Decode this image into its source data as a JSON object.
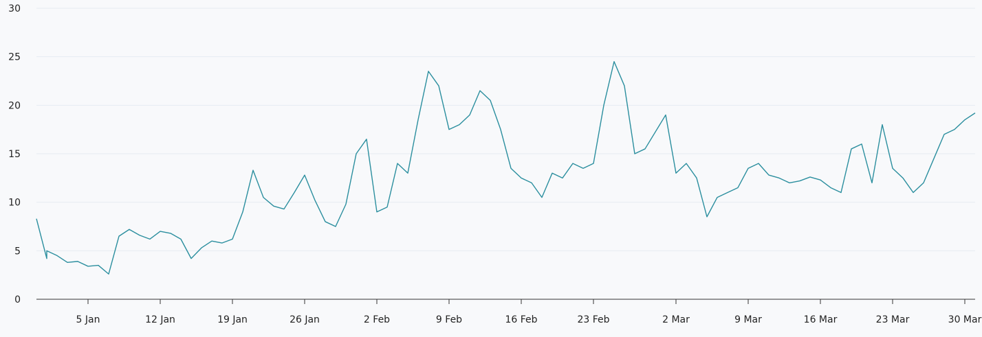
{
  "chart_data": {
    "type": "line",
    "title": "",
    "xlabel": "",
    "ylabel": "",
    "ylim": [
      0,
      30
    ],
    "y_ticks": [
      0,
      5,
      10,
      15,
      20,
      25,
      30
    ],
    "x_ticks": [
      "5 Jan",
      "12 Jan",
      "19 Jan",
      "26 Jan",
      "2 Feb",
      "9 Feb",
      "16 Feb",
      "23 Feb",
      "2 Mar",
      "9 Mar",
      "16 Mar",
      "23 Mar",
      "30 Mar"
    ],
    "x_range": [
      "Dec 30",
      "Mar 31"
    ],
    "grid": "horizontal",
    "line_color": "#2a8e9e",
    "series": [
      {
        "x": [
          "Dec 30",
          "Dec 31",
          "Jan 1",
          "Jan 2",
          "Jan 3",
          "Jan 4",
          "Jan 5",
          "Jan 6",
          "Jan 7",
          "Jan 8",
          "Jan 9",
          "Jan 10",
          "Jan 11",
          "Jan 12",
          "Jan 13",
          "Jan 14",
          "Jan 15",
          "Jan 16",
          "Jan 17",
          "Jan 18",
          "Jan 19",
          "Jan 20",
          "Jan 21",
          "Jan 22",
          "Jan 23",
          "Jan 24",
          "Jan 25",
          "Jan 26",
          "Jan 27",
          "Jan 28",
          "Jan 29",
          "Jan 30",
          "Jan 31",
          "Feb 1",
          "Feb 2",
          "Feb 3",
          "Feb 4",
          "Feb 5",
          "Feb 6",
          "Feb 7",
          "Feb 8",
          "Feb 9",
          "Feb 10",
          "Feb 11",
          "Feb 12",
          "Feb 13",
          "Feb 14",
          "Feb 15",
          "Feb 16",
          "Feb 17",
          "Feb 18",
          "Feb 19",
          "Feb 20",
          "Feb 21",
          "Feb 22",
          "Feb 23",
          "Feb 24",
          "Feb 25",
          "Feb 26",
          "Feb 27",
          "Feb 28",
          "Mar 1",
          "Mar 2",
          "Mar 3",
          "Mar 4",
          "Mar 5",
          "Mar 6",
          "Mar 7",
          "Mar 8",
          "Mar 9",
          "Mar 10",
          "Mar 11",
          "Mar 12",
          "Mar 13",
          "Mar 14",
          "Mar 15",
          "Mar 16",
          "Mar 17",
          "Mar 18",
          "Mar 19",
          "Mar 20",
          "Mar 21",
          "Mar 22",
          "Mar 23",
          "Mar 24",
          "Mar 25",
          "Mar 26",
          "Mar 27",
          "Mar 28",
          "Mar 29",
          "Mar 30",
          "Mar 31"
        ],
        "values": [
          8.3,
          4.2,
          5.0,
          4.5,
          3.8,
          3.9,
          3.4,
          3.5,
          2.6,
          6.5,
          7.2,
          6.6,
          6.2,
          7.0,
          6.8,
          6.2,
          4.2,
          5.3,
          6.0,
          5.8,
          6.2,
          9.0,
          13.3,
          10.5,
          9.6,
          9.3,
          11.0,
          12.8,
          10.2,
          8.0,
          7.5,
          9.8,
          15.0,
          16.5,
          9.0,
          9.5,
          14.0,
          13.0,
          18.5,
          23.5,
          22.0,
          17.5,
          18.0,
          19.0,
          21.5,
          20.5,
          17.5,
          13.5,
          12.5,
          12.0,
          10.5,
          13.0,
          12.5,
          14.0,
          13.5,
          14.0,
          20.0,
          24.5,
          22.0,
          15.0,
          15.5,
          19.0,
          13.0,
          14.0,
          12.5,
          8.5,
          10.5,
          11.0,
          11.5,
          13.5,
          14.0,
          12.8,
          12.5,
          12.0,
          12.2,
          12.6,
          12.3,
          11.5,
          11.0,
          15.5,
          16.0,
          12.0,
          18.0,
          13.5,
          12.5,
          11.0,
          12.0,
          14.5,
          17.0,
          17.5,
          18.5,
          19.2
        ]
      }
    ]
  }
}
